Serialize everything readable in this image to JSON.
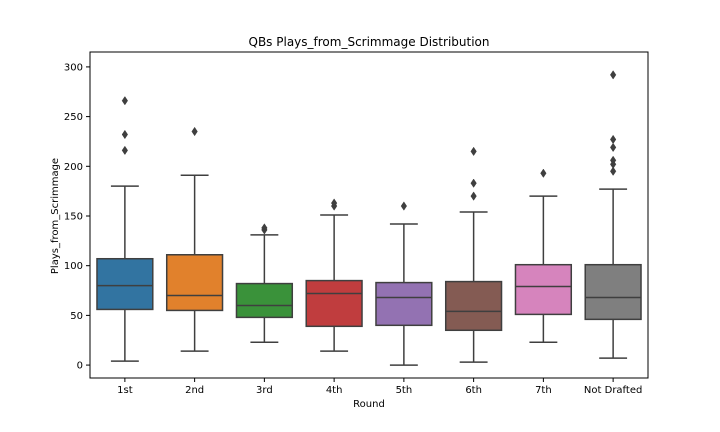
{
  "chart_data": {
    "type": "box",
    "title": "QBs Plays_from_Scrimmage Distribution",
    "xlabel": "Round",
    "ylabel": "Plays_from_Scrimmage",
    "ylim": [
      -13,
      315
    ],
    "yticks": [
      0,
      50,
      100,
      150,
      200,
      250,
      300
    ],
    "grid": false,
    "categories": [
      "1st",
      "2nd",
      "3rd",
      "4th",
      "5th",
      "6th",
      "7th",
      "Not Drafted"
    ],
    "boxes": [
      {
        "category": "1st",
        "color": "#3274a1",
        "whisker_low": 4,
        "q1": 56,
        "median": 80,
        "q3": 107,
        "whisker_high": 180,
        "outliers": [
          216,
          232,
          266
        ]
      },
      {
        "category": "2nd",
        "color": "#e1812c",
        "whisker_low": 14,
        "q1": 55,
        "median": 70,
        "q3": 111,
        "whisker_high": 191,
        "outliers": [
          235
        ]
      },
      {
        "category": "3rd",
        "color": "#3a923a",
        "whisker_low": 23,
        "q1": 48,
        "median": 60,
        "q3": 82,
        "whisker_high": 131,
        "outliers": [
          136,
          138
        ]
      },
      {
        "category": "4th",
        "color": "#c03d3e",
        "whisker_low": 14,
        "q1": 39,
        "median": 72,
        "q3": 85,
        "whisker_high": 151,
        "outliers": [
          160,
          163
        ]
      },
      {
        "category": "5th",
        "color": "#9372b2",
        "whisker_low": 0,
        "q1": 40,
        "median": 68,
        "q3": 83,
        "whisker_high": 142,
        "outliers": [
          160
        ]
      },
      {
        "category": "6th",
        "color": "#845b53",
        "whisker_low": 3,
        "q1": 35,
        "median": 54,
        "q3": 84,
        "whisker_high": 154,
        "outliers": [
          170,
          183,
          215
        ]
      },
      {
        "category": "7th",
        "color": "#d684bd",
        "whisker_low": 23,
        "q1": 51,
        "median": 79,
        "q3": 101,
        "whisker_high": 170,
        "outliers": [
          193
        ]
      },
      {
        "category": "Not Drafted",
        "color": "#7f7f7f",
        "whisker_low": 7,
        "q1": 46,
        "median": 68,
        "q3": 101,
        "whisker_high": 177,
        "outliers": [
          195,
          202,
          206,
          219,
          227,
          292
        ]
      }
    ]
  }
}
